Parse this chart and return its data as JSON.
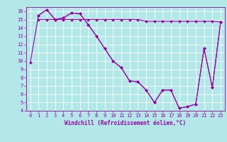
{
  "xlabel": "Windchill (Refroidissement éolien,°C)",
  "background_color": "#b2e8e8",
  "grid_color": "#ffffff",
  "line_color": "#9900aa",
  "xlim": [
    -0.5,
    23.5
  ],
  "ylim": [
    4,
    16.5
  ],
  "xticks": [
    0,
    1,
    2,
    3,
    4,
    5,
    6,
    7,
    8,
    9,
    10,
    11,
    12,
    13,
    14,
    15,
    16,
    17,
    18,
    19,
    20,
    21,
    22,
    23
  ],
  "yticks": [
    4,
    5,
    6,
    7,
    8,
    9,
    10,
    11,
    12,
    13,
    14,
    15,
    16
  ],
  "series": [
    {
      "x": [
        0,
        1,
        2,
        3,
        4,
        5,
        6,
        7,
        8,
        9,
        10,
        11,
        12,
        13,
        14,
        15,
        16,
        17,
        18,
        19,
        20,
        21,
        22,
        23
      ],
      "y": [
        9.8,
        15.5,
        16.2,
        15.0,
        15.2,
        15.8,
        15.7,
        14.4,
        13.0,
        11.5,
        10.0,
        9.2,
        7.6,
        7.5,
        6.5,
        5.0,
        6.5,
        6.5,
        4.3,
        4.5,
        4.8,
        11.5,
        6.8,
        14.7
      ]
    },
    {
      "x": [
        1,
        2,
        3,
        4,
        5,
        6,
        7,
        8,
        9,
        10,
        11,
        12,
        13,
        14,
        15,
        16,
        17,
        18,
        19,
        20,
        21,
        22,
        23
      ],
      "y": [
        15.5,
        16.2,
        15.0,
        15.2,
        15.8,
        15.7,
        14.4,
        13.0,
        11.5,
        10.0,
        9.2,
        7.6,
        7.5,
        6.5,
        5.0,
        6.5,
        6.5,
        4.3,
        4.5,
        4.8,
        11.5,
        6.8,
        14.7
      ]
    },
    {
      "x": [
        1,
        2,
        3,
        4,
        5,
        6,
        7,
        8,
        9,
        10,
        11,
        12,
        13,
        14,
        15,
        16,
        17,
        18,
        19,
        20,
        21,
        22,
        23
      ],
      "y": [
        15.0,
        15.0,
        15.0,
        15.0,
        15.0,
        15.0,
        15.0,
        15.0,
        15.0,
        15.0,
        15.0,
        15.0,
        15.0,
        14.8,
        14.8,
        14.8,
        14.8,
        14.8,
        14.8,
        14.8,
        14.8,
        14.8,
        14.7
      ]
    }
  ],
  "tick_fontsize": 5,
  "xlabel_fontsize": 5.5
}
